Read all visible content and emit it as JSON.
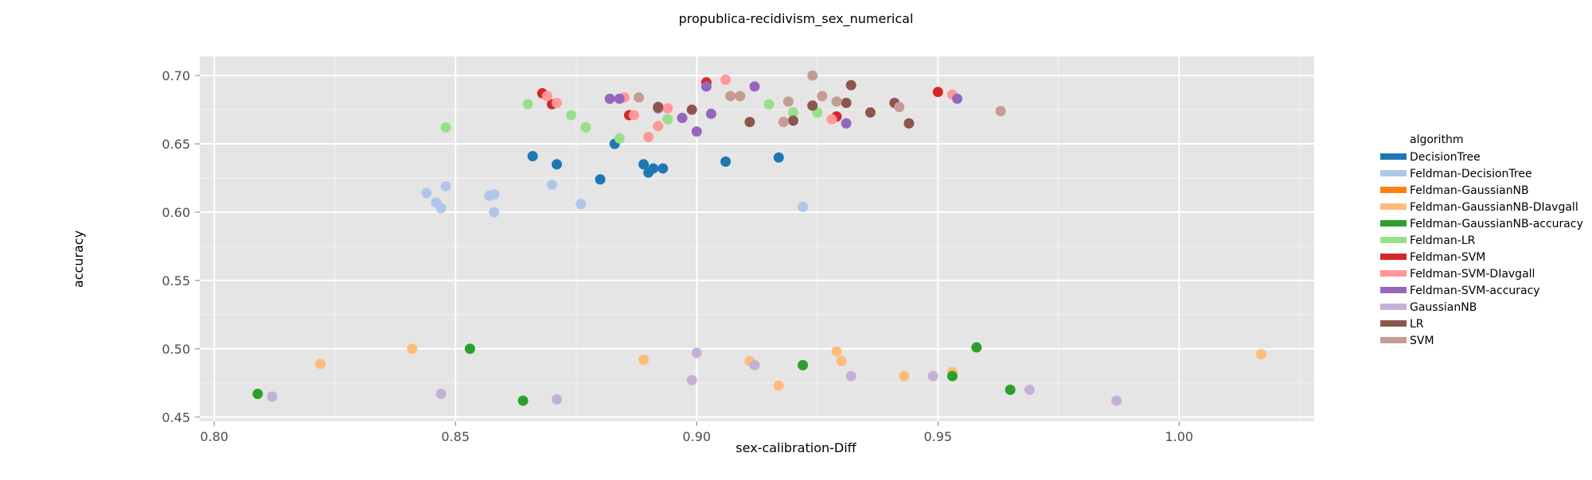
{
  "chart_data": {
    "type": "scatter",
    "title": "propublica-recidivism_sex_numerical",
    "xlabel": "sex-calibration-Diff",
    "ylabel": "accuracy",
    "xlim": [
      0.797,
      1.028
    ],
    "ylim": [
      0.447,
      0.714
    ],
    "xticks": [
      0.8,
      0.85,
      0.9,
      0.95,
      1.0
    ],
    "xtick_labels": [
      "0.80",
      "0.85",
      "0.90",
      "0.95",
      "1.00"
    ],
    "yticks": [
      0.45,
      0.5,
      0.55,
      0.6,
      0.65,
      0.7
    ],
    "ytick_labels": [
      "0.45",
      "0.50",
      "0.55",
      "0.60",
      "0.65",
      "0.70"
    ],
    "grid": true,
    "legend_title": "algorithm",
    "legend_position": "right",
    "series": [
      {
        "name": "DecisionTree",
        "color": "#1f77b4",
        "points": [
          [
            0.866,
            0.641
          ],
          [
            0.871,
            0.635
          ],
          [
            0.88,
            0.624
          ],
          [
            0.883,
            0.65
          ],
          [
            0.889,
            0.635
          ],
          [
            0.89,
            0.629
          ],
          [
            0.891,
            0.632
          ],
          [
            0.893,
            0.632
          ],
          [
            0.906,
            0.637
          ],
          [
            0.917,
            0.64
          ]
        ]
      },
      {
        "name": "Feldman-DecisionTree",
        "color": "#aec7e8",
        "points": [
          [
            0.844,
            0.614
          ],
          [
            0.846,
            0.607
          ],
          [
            0.847,
            0.603
          ],
          [
            0.848,
            0.619
          ],
          [
            0.857,
            0.612
          ],
          [
            0.858,
            0.613
          ],
          [
            0.858,
            0.6
          ],
          [
            0.87,
            0.62
          ],
          [
            0.876,
            0.606
          ],
          [
            0.922,
            0.604
          ]
        ]
      },
      {
        "name": "Feldman-GaussianNB",
        "color": "#ff7f0e",
        "points": []
      },
      {
        "name": "Feldman-GaussianNB-DIavgall",
        "color": "#ffbb78",
        "points": [
          [
            0.822,
            0.489
          ],
          [
            0.841,
            0.5
          ],
          [
            0.889,
            0.492
          ],
          [
            0.911,
            0.491
          ],
          [
            0.917,
            0.473
          ],
          [
            0.929,
            0.498
          ],
          [
            0.93,
            0.491
          ],
          [
            0.943,
            0.48
          ],
          [
            0.953,
            0.483
          ],
          [
            1.017,
            0.496
          ]
        ]
      },
      {
        "name": "Feldman-GaussianNB-accuracy",
        "color": "#2ca02c",
        "points": [
          [
            0.809,
            0.467
          ],
          [
            0.853,
            0.5
          ],
          [
            0.864,
            0.462
          ],
          [
            0.922,
            0.488
          ],
          [
            0.953,
            0.48
          ],
          [
            0.958,
            0.501
          ],
          [
            0.965,
            0.47
          ]
        ]
      },
      {
        "name": "Feldman-LR",
        "color": "#98df8a",
        "points": [
          [
            0.848,
            0.662
          ],
          [
            0.865,
            0.679
          ],
          [
            0.874,
            0.671
          ],
          [
            0.877,
            0.662
          ],
          [
            0.884,
            0.654
          ],
          [
            0.894,
            0.668
          ],
          [
            0.915,
            0.679
          ],
          [
            0.92,
            0.673
          ],
          [
            0.925,
            0.673
          ]
        ]
      },
      {
        "name": "Feldman-SVM",
        "color": "#d62728",
        "points": [
          [
            0.868,
            0.687
          ],
          [
            0.87,
            0.679
          ],
          [
            0.886,
            0.671
          ],
          [
            0.902,
            0.695
          ],
          [
            0.929,
            0.67
          ],
          [
            0.95,
            0.688
          ]
        ]
      },
      {
        "name": "Feldman-SVM-DIavgall",
        "color": "#ff9896",
        "points": [
          [
            0.869,
            0.685
          ],
          [
            0.871,
            0.68
          ],
          [
            0.885,
            0.684
          ],
          [
            0.887,
            0.671
          ],
          [
            0.89,
            0.655
          ],
          [
            0.892,
            0.663
          ],
          [
            0.894,
            0.676
          ],
          [
            0.906,
            0.697
          ],
          [
            0.928,
            0.668
          ],
          [
            0.953,
            0.686
          ]
        ]
      },
      {
        "name": "Feldman-SVM-accuracy",
        "color": "#9467bd",
        "points": [
          [
            0.882,
            0.683
          ],
          [
            0.884,
            0.683
          ],
          [
            0.892,
            0.676
          ],
          [
            0.897,
            0.669
          ],
          [
            0.9,
            0.659
          ],
          [
            0.902,
            0.692
          ],
          [
            0.903,
            0.672
          ],
          [
            0.912,
            0.692
          ],
          [
            0.931,
            0.665
          ],
          [
            0.954,
            0.683
          ]
        ]
      },
      {
        "name": "GaussianNB",
        "color": "#c5b0d5",
        "points": [
          [
            0.812,
            0.465
          ],
          [
            0.847,
            0.467
          ],
          [
            0.871,
            0.463
          ],
          [
            0.899,
            0.477
          ],
          [
            0.9,
            0.497
          ],
          [
            0.912,
            0.488
          ],
          [
            0.932,
            0.48
          ],
          [
            0.949,
            0.48
          ],
          [
            0.969,
            0.47
          ],
          [
            0.987,
            0.462
          ]
        ]
      },
      {
        "name": "LR",
        "color": "#8c564b",
        "points": [
          [
            0.892,
            0.677
          ],
          [
            0.899,
            0.675
          ],
          [
            0.911,
            0.666
          ],
          [
            0.92,
            0.667
          ],
          [
            0.924,
            0.678
          ],
          [
            0.931,
            0.68
          ],
          [
            0.932,
            0.693
          ],
          [
            0.936,
            0.673
          ],
          [
            0.941,
            0.68
          ],
          [
            0.944,
            0.665
          ]
        ]
      },
      {
        "name": "SVM",
        "color": "#c49c94",
        "points": [
          [
            0.888,
            0.684
          ],
          [
            0.907,
            0.685
          ],
          [
            0.909,
            0.685
          ],
          [
            0.918,
            0.666
          ],
          [
            0.919,
            0.681
          ],
          [
            0.924,
            0.7
          ],
          [
            0.926,
            0.685
          ],
          [
            0.929,
            0.681
          ],
          [
            0.942,
            0.677
          ],
          [
            0.963,
            0.674
          ]
        ]
      }
    ]
  }
}
